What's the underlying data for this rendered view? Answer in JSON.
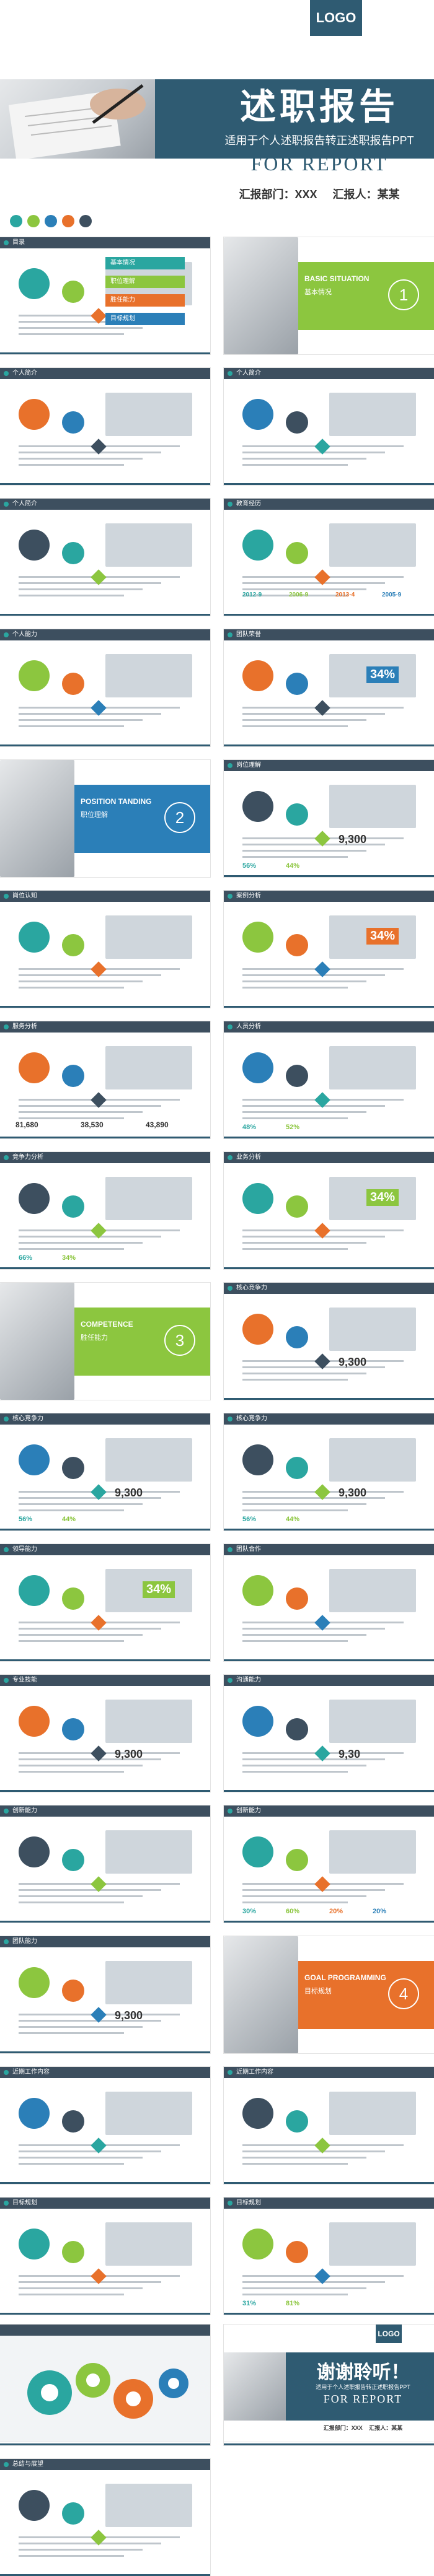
{
  "cover": {
    "logo": "LOGO",
    "title": "述职报告",
    "subtitle": "适用于个人述职报告转正述职报告PPT",
    "english_title": "FOR REPORT",
    "dept_label": "汇报部门：XXX",
    "reporter_label": "汇报人：某某"
  },
  "slides": [
    {
      "title": "目录",
      "items": [
        "基本情况",
        "职位理解",
        "胜任能力",
        "目标规划"
      ]
    },
    {
      "title": "BASIC SITUATION",
      "sub": "基本情况",
      "num": "1"
    },
    {
      "title": "个人简介"
    },
    {
      "title": "个人简介"
    },
    {
      "title": "个人简介"
    },
    {
      "title": "教育经历",
      "years": [
        "2012-9",
        "2006-9",
        "2013-4",
        "2005-9"
      ]
    },
    {
      "title": "个人能力"
    },
    {
      "title": "团队荣誉",
      "pct": "34%"
    },
    {
      "title": "POSITION TANDING",
      "sub": "职位理解",
      "num": "2"
    },
    {
      "title": "岗位理解",
      "big": "9,300",
      "pcts": [
        "56%",
        "44%"
      ]
    },
    {
      "title": "岗位认知"
    },
    {
      "title": "案例分析",
      "pct": "34%"
    },
    {
      "title": "服务分析",
      "nums": [
        "81,680",
        "38,530",
        "43,890"
      ]
    },
    {
      "title": "人员分析",
      "pcts": [
        "48%",
        "52%"
      ]
    },
    {
      "title": "竞争力分析",
      "pcts": [
        "66%",
        "34%"
      ]
    },
    {
      "title": "业务分析",
      "pct": "34%"
    },
    {
      "title": "COMPETENCE",
      "sub": "胜任能力",
      "num": "3"
    },
    {
      "title": "核心竞争力",
      "big": "9,300"
    },
    {
      "title": "核心竞争力",
      "big": "9,300",
      "pcts": [
        "56%",
        "44%"
      ]
    },
    {
      "title": "核心竞争力",
      "big": "9,300",
      "pcts": [
        "56%",
        "44%"
      ]
    },
    {
      "title": "领导能力",
      "pct": "34%"
    },
    {
      "title": "团队合作"
    },
    {
      "title": "专业技能",
      "big": "9,300"
    },
    {
      "title": "沟通能力",
      "big": "9,30"
    },
    {
      "title": "创新能力"
    },
    {
      "title": "创新能力",
      "pcts": [
        "30%",
        "60%",
        "20%",
        "20%"
      ]
    },
    {
      "title": "团队能力",
      "big": "9,300"
    },
    {
      "title": "GOAL PROGRAMMING",
      "sub": "目标规划",
      "num": "4"
    },
    {
      "title": "近期工作内容"
    },
    {
      "title": "近期工作内容"
    },
    {
      "title": "目标规划"
    },
    {
      "title": "目标规划",
      "pcts": [
        "31%",
        "81%"
      ]
    },
    {
      "title": "实施方案"
    },
    {
      "title": "实施方案"
    },
    {
      "title": "总结与展望"
    }
  ],
  "closing": {
    "logo": "LOGO",
    "title": "谢谢聆听！",
    "subtitle": "适用于个人述职报告转正述职报告PPT",
    "english_title": "FOR REPORT",
    "dept_label": "汇报部门：XXX",
    "reporter_label": "汇报人：某某"
  }
}
